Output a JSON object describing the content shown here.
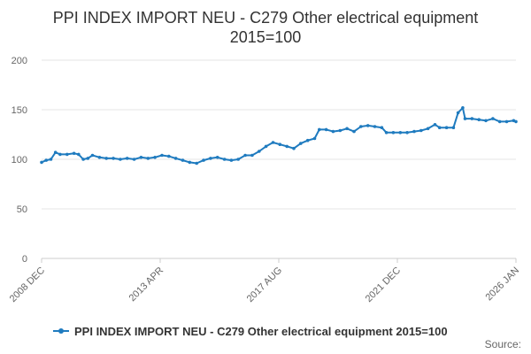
{
  "chart_data": {
    "type": "line",
    "title_line1": "PPI INDEX IMPORT NEU - C279 Other electrical equipment",
    "title_line2": "2015=100",
    "xlabel": "",
    "ylabel": "",
    "ylim": [
      0,
      200
    ],
    "yticks": [
      0,
      50,
      100,
      150,
      200
    ],
    "xtick_labels": [
      "2008 DEC",
      "2013 APR",
      "2017 AUG",
      "2021 DEC",
      "2026 JAN"
    ],
    "grid": "horizontal",
    "legend_position": "bottom",
    "series": [
      {
        "name": "PPI INDEX IMPORT NEU - C279 Other electrical equipment 2015=100",
        "color": "#1f7bbf",
        "points": [
          [
            "2008-12",
            97
          ],
          [
            "2009-02",
            99
          ],
          [
            "2009-04",
            100
          ],
          [
            "2009-06",
            107
          ],
          [
            "2009-08",
            105
          ],
          [
            "2009-11",
            105
          ],
          [
            "2010-02",
            106
          ],
          [
            "2010-04",
            105
          ],
          [
            "2010-06",
            100
          ],
          [
            "2010-08",
            101
          ],
          [
            "2010-10",
            104
          ],
          [
            "2011-01",
            102
          ],
          [
            "2011-04",
            101
          ],
          [
            "2011-07",
            101
          ],
          [
            "2011-10",
            100
          ],
          [
            "2012-01",
            101
          ],
          [
            "2012-04",
            100
          ],
          [
            "2012-07",
            102
          ],
          [
            "2012-10",
            101
          ],
          [
            "2013-01",
            102
          ],
          [
            "2013-04",
            104
          ],
          [
            "2013-07",
            103
          ],
          [
            "2013-10",
            101
          ],
          [
            "2014-01",
            99
          ],
          [
            "2014-04",
            97
          ],
          [
            "2014-07",
            96
          ],
          [
            "2014-10",
            99
          ],
          [
            "2015-01",
            101
          ],
          [
            "2015-04",
            102
          ],
          [
            "2015-07",
            100
          ],
          [
            "2015-10",
            99
          ],
          [
            "2016-01",
            100
          ],
          [
            "2016-04",
            104
          ],
          [
            "2016-07",
            104
          ],
          [
            "2016-10",
            108
          ],
          [
            "2017-01",
            113
          ],
          [
            "2017-04",
            117
          ],
          [
            "2017-07",
            115
          ],
          [
            "2017-10",
            113
          ],
          [
            "2018-01",
            111
          ],
          [
            "2018-04",
            116
          ],
          [
            "2018-07",
            119
          ],
          [
            "2018-10",
            121
          ],
          [
            "2018-12",
            130
          ],
          [
            "2019-03",
            130
          ],
          [
            "2019-06",
            128
          ],
          [
            "2019-09",
            129
          ],
          [
            "2019-12",
            131
          ],
          [
            "2020-03",
            128
          ],
          [
            "2020-06",
            133
          ],
          [
            "2020-09",
            134
          ],
          [
            "2020-12",
            133
          ],
          [
            "2021-03",
            132
          ],
          [
            "2021-05",
            127
          ],
          [
            "2021-08",
            127
          ],
          [
            "2021-11",
            127
          ],
          [
            "2022-02",
            127
          ],
          [
            "2022-05",
            128
          ],
          [
            "2022-08",
            129
          ],
          [
            "2022-11",
            131
          ],
          [
            "2023-02",
            135
          ],
          [
            "2023-04",
            132
          ],
          [
            "2023-07",
            132
          ],
          [
            "2023-10",
            132
          ],
          [
            "2023-12",
            147
          ],
          [
            "2024-02",
            152
          ],
          [
            "2024-03",
            141
          ],
          [
            "2024-06",
            141
          ],
          [
            "2024-09",
            140
          ],
          [
            "2024-12",
            139
          ],
          [
            "2025-03",
            141
          ],
          [
            "2025-06",
            138
          ],
          [
            "2025-09",
            138
          ],
          [
            "2025-12",
            139
          ],
          [
            "2026-01",
            138
          ]
        ]
      }
    ],
    "source_label": "Source:"
  }
}
